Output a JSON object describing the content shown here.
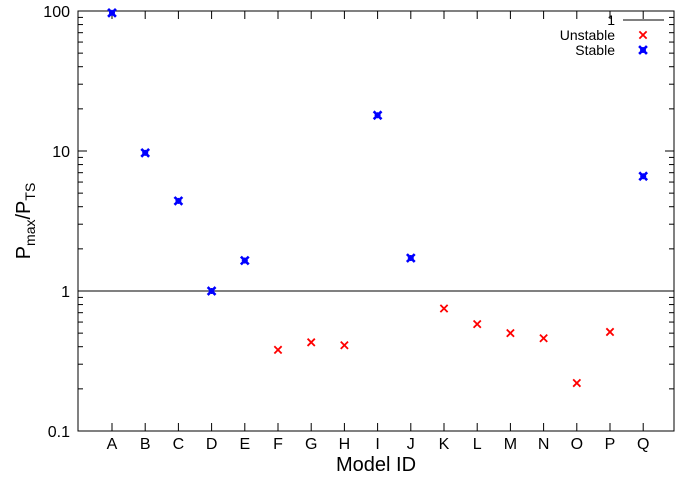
{
  "chart_data": {
    "type": "scatter",
    "title": "",
    "xlabel": "Model ID",
    "ylabel": {
      "base": "P",
      "sub1": "max",
      "sep": "/P",
      "sub2": "TS"
    },
    "yscale": "log",
    "ylim": [
      0.1,
      100
    ],
    "yticks": [
      "0.1",
      "1",
      "10",
      "100"
    ],
    "categories": [
      "A",
      "B",
      "C",
      "D",
      "E",
      "F",
      "G",
      "H",
      "I",
      "J",
      "K",
      "L",
      "M",
      "N",
      "O",
      "P",
      "Q"
    ],
    "reference_line": {
      "name": "1",
      "y": 1,
      "color": "#000000"
    },
    "series": [
      {
        "name": "Unstable",
        "color": "#ff0000",
        "marker": "x",
        "points": [
          {
            "x": "F",
            "y": 0.38
          },
          {
            "x": "G",
            "y": 0.43
          },
          {
            "x": "H",
            "y": 0.41
          },
          {
            "x": "K",
            "y": 0.75
          },
          {
            "x": "L",
            "y": 0.58
          },
          {
            "x": "M",
            "y": 0.5
          },
          {
            "x": "N",
            "y": 0.46
          },
          {
            "x": "O",
            "y": 0.22
          },
          {
            "x": "P",
            "y": 0.51
          }
        ]
      },
      {
        "name": "Stable",
        "color": "#0000ff",
        "marker": "x-bold",
        "points": [
          {
            "x": "A",
            "y": 97
          },
          {
            "x": "B",
            "y": 9.7
          },
          {
            "x": "C",
            "y": 4.4
          },
          {
            "x": "D",
            "y": 1.0
          },
          {
            "x": "E",
            "y": 1.65
          },
          {
            "x": "I",
            "y": 18
          },
          {
            "x": "J",
            "y": 1.72
          },
          {
            "x": "Q",
            "y": 6.6
          }
        ]
      }
    ],
    "grid": false,
    "legend": "top-right"
  }
}
